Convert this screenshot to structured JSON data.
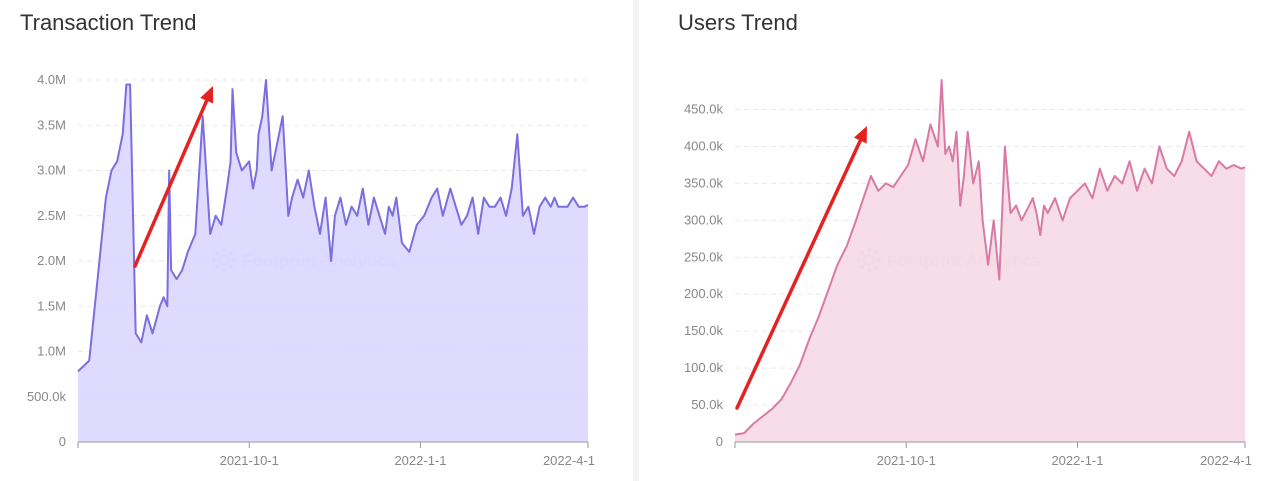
{
  "chart_data": [
    {
      "type": "area",
      "title": "Transaction Trend",
      "xlabel": "",
      "ylabel": "",
      "ylim": [
        0,
        4000000
      ],
      "y_ticks": [
        {
          "value": 0,
          "label": "0"
        },
        {
          "value": 500000,
          "label": "500.0k"
        },
        {
          "value": 1000000,
          "label": "1.0M"
        },
        {
          "value": 1500000,
          "label": "1.5M"
        },
        {
          "value": 2000000,
          "label": "2.0M"
        },
        {
          "value": 2500000,
          "label": "2.5M"
        },
        {
          "value": 3000000,
          "label": "3.0M"
        },
        {
          "value": 3500000,
          "label": "3.5M"
        },
        {
          "value": 4000000,
          "label": "4.0M"
        }
      ],
      "x_ticks": [
        "2021-10-1",
        "2022-1-1",
        "2022-4-1"
      ],
      "grid": true,
      "line_color": "#7b6ee0",
      "fill_color": "#d9d4ff",
      "watermark": "Footprint Analytics",
      "annotation": "red arrow pointing up-right",
      "series": [
        {
          "x": [
            "2021-7-1",
            "2021-7-7",
            "2021-7-12",
            "2021-7-16",
            "2021-7-19",
            "2021-7-22",
            "2021-7-25",
            "2021-7-27",
            "2021-7-29",
            "2021-8-1",
            "2021-8-4",
            "2021-8-7",
            "2021-8-10",
            "2021-8-14",
            "2021-8-16",
            "2021-8-18",
            "2021-8-19",
            "2021-8-20",
            "2021-8-23",
            "2021-8-26",
            "2021-8-29",
            "2021-9-2",
            "2021-9-6",
            "2021-9-10",
            "2021-9-13",
            "2021-9-16",
            "2021-9-19",
            "2021-9-21",
            "2021-9-22",
            "2021-9-24",
            "2021-9-27",
            "2021-10-1",
            "2021-10-3",
            "2021-10-5",
            "2021-10-6",
            "2021-10-8",
            "2021-10-10",
            "2021-10-13",
            "2021-10-16",
            "2021-10-19",
            "2021-10-22",
            "2021-10-24",
            "2021-10-27",
            "2021-10-30",
            "2021-11-2",
            "2021-11-5",
            "2021-11-8",
            "2021-11-11",
            "2021-11-14",
            "2021-11-16",
            "2021-11-19",
            "2021-11-22",
            "2021-11-25",
            "2021-11-28",
            "2021-12-1",
            "2021-12-4",
            "2021-12-7",
            "2021-12-10",
            "2021-12-13",
            "2021-12-15",
            "2021-12-17",
            "2021-12-19",
            "2021-12-22",
            "2021-12-26",
            "2021-12-30",
            "2022-1-3",
            "2022-1-7",
            "2022-1-10",
            "2022-1-13",
            "2022-1-17",
            "2022-1-20",
            "2022-1-23",
            "2022-1-26",
            "2022-1-29",
            "2022-2-1",
            "2022-2-4",
            "2022-2-7",
            "2022-2-10",
            "2022-2-13",
            "2022-2-16",
            "2022-2-19",
            "2022-2-22",
            "2022-2-25",
            "2022-2-28",
            "2022-3-3",
            "2022-3-6",
            "2022-3-9",
            "2022-3-12",
            "2022-3-14",
            "2022-3-16",
            "2022-3-18",
            "2022-3-21",
            "2022-3-24",
            "2022-3-27",
            "2022-3-30",
            "2022-4-1"
          ],
          "y": [
            780000,
            900000,
            1900000,
            2700000,
            3000000,
            3100000,
            3400000,
            3950000,
            3950000,
            1200000,
            1100000,
            1400000,
            1200000,
            1500000,
            1600000,
            1500000,
            3000000,
            1900000,
            1800000,
            1900000,
            2100000,
            2300000,
            3600000,
            2300000,
            2500000,
            2400000,
            2800000,
            3100000,
            3900000,
            3200000,
            3000000,
            3100000,
            2800000,
            3000000,
            3400000,
            3600000,
            4000000,
            3000000,
            3300000,
            3600000,
            2500000,
            2700000,
            2900000,
            2700000,
            3000000,
            2600000,
            2300000,
            2700000,
            2000000,
            2500000,
            2700000,
            2400000,
            2600000,
            2500000,
            2800000,
            2400000,
            2700000,
            2500000,
            2300000,
            2600000,
            2500000,
            2700000,
            2200000,
            2100000,
            2400000,
            2500000,
            2700000,
            2800000,
            2500000,
            2800000,
            2600000,
            2400000,
            2500000,
            2700000,
            2300000,
            2700000,
            2600000,
            2600000,
            2700000,
            2500000,
            2800000,
            3400000,
            2500000,
            2600000,
            2300000,
            2600000,
            2700000,
            2600000,
            2700000,
            2600000,
            2600000,
            2600000,
            2700000,
            2600000,
            2600000,
            2620000
          ]
        }
      ]
    },
    {
      "type": "area",
      "title": "Users Trend",
      "xlabel": "",
      "ylabel": "",
      "ylim": [
        0,
        490000
      ],
      "y_ticks": [
        {
          "value": 0,
          "label": "0"
        },
        {
          "value": 50000,
          "label": "50.0k"
        },
        {
          "value": 100000,
          "label": "100.0k"
        },
        {
          "value": 150000,
          "label": "150.0k"
        },
        {
          "value": 200000,
          "label": "200.0k"
        },
        {
          "value": 250000,
          "label": "250.0k"
        },
        {
          "value": 300000,
          "label": "300.0k"
        },
        {
          "value": 350000,
          "label": "350.0k"
        },
        {
          "value": 400000,
          "label": "400.0k"
        },
        {
          "value": 450000,
          "label": "450.0k"
        }
      ],
      "x_ticks": [
        "2021-10-1",
        "2022-1-1",
        "2022-4-1"
      ],
      "grid": true,
      "line_color": "#d97aa3",
      "fill_color": "#f5d7e3",
      "watermark": "Footprint Analytics",
      "annotation": "red arrow pointing up-right",
      "series": [
        {
          "x": [
            "2021-7-1",
            "2021-7-6",
            "2021-7-11",
            "2021-7-16",
            "2021-7-21",
            "2021-7-26",
            "2021-7-31",
            "2021-8-5",
            "2021-8-10",
            "2021-8-15",
            "2021-8-20",
            "2021-8-25",
            "2021-8-30",
            "2021-9-4",
            "2021-9-8",
            "2021-9-12",
            "2021-9-16",
            "2021-9-20",
            "2021-9-24",
            "2021-9-28",
            "2021-10-2",
            "2021-10-6",
            "2021-10-10",
            "2021-10-14",
            "2021-10-18",
            "2021-10-20",
            "2021-10-22",
            "2021-10-24",
            "2021-10-26",
            "2021-10-28",
            "2021-10-30",
            "2021-11-1",
            "2021-11-3",
            "2021-11-6",
            "2021-11-9",
            "2021-11-11",
            "2021-11-14",
            "2021-11-17",
            "2021-11-20",
            "2021-11-23",
            "2021-11-26",
            "2021-11-29",
            "2021-12-2",
            "2021-12-5",
            "2021-12-8",
            "2021-12-10",
            "2021-12-12",
            "2021-12-14",
            "2021-12-16",
            "2021-12-18",
            "2021-12-20",
            "2021-12-24",
            "2021-12-28",
            "2022-1-1",
            "2022-1-5",
            "2022-1-9",
            "2022-1-13",
            "2022-1-17",
            "2022-1-21",
            "2022-1-25",
            "2022-1-29",
            "2022-2-2",
            "2022-2-6",
            "2022-2-10",
            "2022-2-14",
            "2022-2-18",
            "2022-2-22",
            "2022-2-26",
            "2022-3-2",
            "2022-3-6",
            "2022-3-10",
            "2022-3-14",
            "2022-3-18",
            "2022-3-22",
            "2022-3-26",
            "2022-3-30",
            "2022-4-1"
          ],
          "y": [
            10000,
            12000,
            25000,
            35000,
            45000,
            58000,
            80000,
            105000,
            140000,
            170000,
            205000,
            240000,
            265000,
            300000,
            330000,
            360000,
            340000,
            350000,
            345000,
            360000,
            375000,
            410000,
            380000,
            430000,
            400000,
            490000,
            390000,
            400000,
            380000,
            420000,
            320000,
            360000,
            420000,
            350000,
            380000,
            300000,
            240000,
            300000,
            220000,
            400000,
            310000,
            320000,
            300000,
            315000,
            330000,
            310000,
            280000,
            320000,
            310000,
            320000,
            330000,
            300000,
            330000,
            340000,
            350000,
            330000,
            370000,
            340000,
            360000,
            350000,
            380000,
            340000,
            370000,
            350000,
            400000,
            370000,
            360000,
            380000,
            420000,
            380000,
            370000,
            360000,
            380000,
            370000,
            375000,
            370000,
            372000
          ]
        }
      ]
    }
  ]
}
